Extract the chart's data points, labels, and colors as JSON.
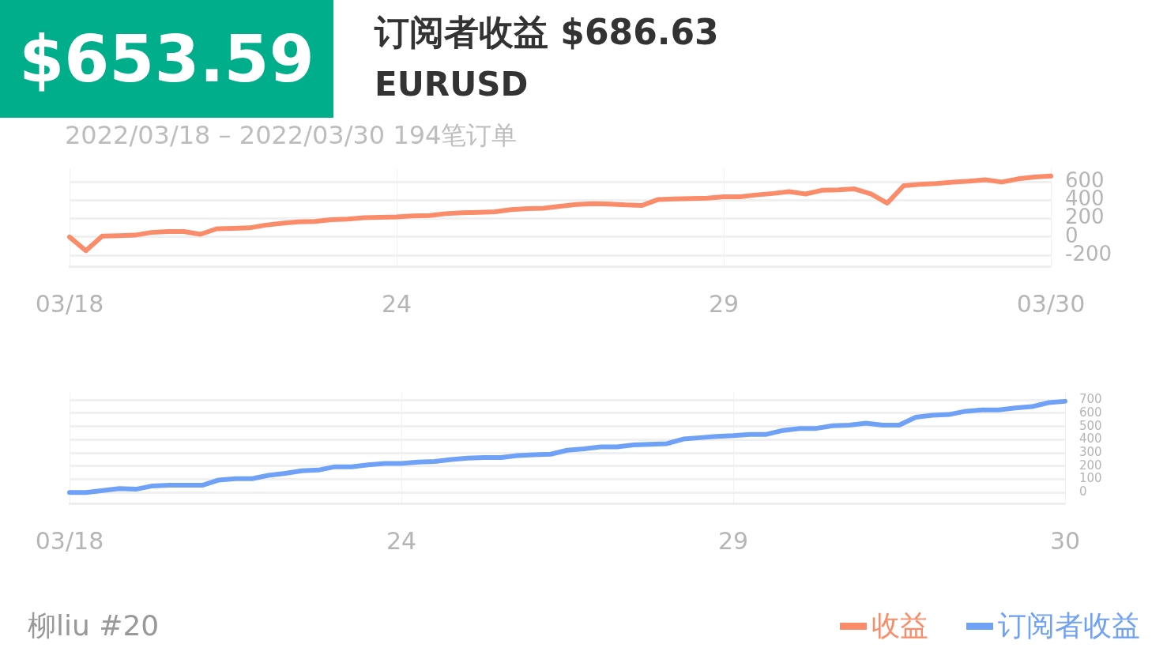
{
  "chart_data": [
    {
      "type": "other",
      "title": "订阅者收益 $686.63",
      "subtitle": "EURUSD",
      "annotations": [
        "$653.59",
        "柳liu #20"
      ]
    },
    {
      "type": "line",
      "annotations": [
        "2022/03/18 – 2022/03/30 194笔订单"
      ],
      "categories": [
        "03/18",
        null,
        null,
        null,
        null,
        null,
        null,
        null,
        null,
        null,
        null,
        null,
        null,
        null,
        null,
        null,
        null,
        null,
        null,
        null,
        "24",
        null,
        null,
        null,
        null,
        null,
        null,
        null,
        null,
        null,
        null,
        null,
        null,
        null,
        null,
        null,
        null,
        null,
        null,
        null,
        "29",
        null,
        null,
        null,
        null,
        null,
        null,
        null,
        null,
        null,
        null,
        null,
        null,
        null,
        null,
        null,
        null,
        null,
        null,
        null,
        "03/30"
      ],
      "ylim": [
        -320,
        745
      ],
      "yticks": [
        -200,
        0,
        200,
        400,
        600
      ],
      "grid": true,
      "legend": "bottom right",
      "marker": "none",
      "line_style": "solid",
      "series": [
        {
          "name": "收益",
          "color": "#fa8c69",
          "values": [
            0,
            -150,
            10,
            15,
            20,
            50,
            60,
            60,
            30,
            90,
            95,
            100,
            130,
            150,
            165,
            170,
            190,
            195,
            210,
            215,
            220,
            230,
            235,
            255,
            265,
            270,
            275,
            300,
            310,
            315,
            335,
            355,
            365,
            360,
            350,
            345,
            410,
            415,
            420,
            425,
            440,
            440,
            460,
            475,
            495,
            470,
            510,
            515,
            525,
            470,
            370,
            560,
            575,
            585,
            600,
            610,
            625,
            600,
            635,
            655,
            665
          ]
        }
      ]
    },
    {
      "type": "line",
      "categories": [
        "03/18",
        null,
        null,
        null,
        null,
        null,
        null,
        null,
        null,
        null,
        null,
        null,
        null,
        null,
        null,
        null,
        null,
        null,
        null,
        null,
        "24",
        null,
        null,
        null,
        null,
        null,
        null,
        null,
        null,
        null,
        null,
        null,
        null,
        null,
        null,
        null,
        null,
        null,
        null,
        null,
        "29",
        null,
        null,
        null,
        null,
        null,
        null,
        null,
        null,
        null,
        null,
        null,
        null,
        null,
        null,
        null,
        null,
        null,
        null,
        null,
        "30"
      ],
      "ylim": [
        -82,
        755
      ],
      "yticks": [
        0,
        100,
        200,
        300,
        400,
        500,
        600,
        700
      ],
      "grid": true,
      "legend": "bottom right",
      "marker": "none",
      "line_style": "solid",
      "series": [
        {
          "name": "订阅者收益",
          "color": "#6fa1f7",
          "values": [
            0,
            0,
            15,
            30,
            25,
            50,
            55,
            55,
            55,
            95,
            105,
            105,
            130,
            145,
            165,
            170,
            195,
            195,
            210,
            220,
            220,
            230,
            235,
            250,
            260,
            265,
            265,
            280,
            285,
            290,
            320,
            330,
            345,
            345,
            360,
            365,
            370,
            405,
            415,
            425,
            430,
            440,
            440,
            470,
            485,
            485,
            505,
            510,
            525,
            510,
            510,
            570,
            585,
            590,
            615,
            625,
            625,
            640,
            650,
            680,
            690
          ]
        }
      ]
    }
  ]
}
